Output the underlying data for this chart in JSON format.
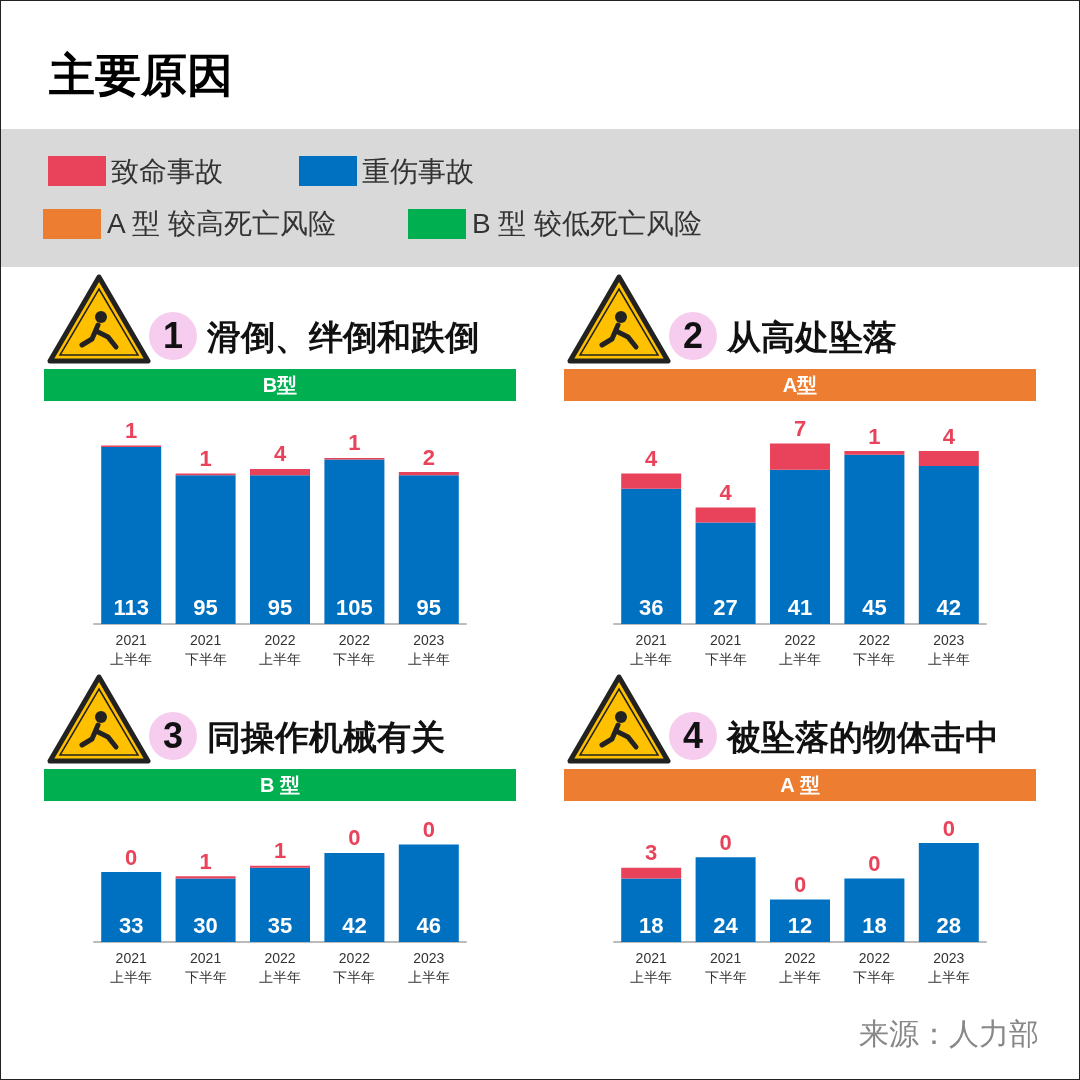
{
  "chart_data": [
    {
      "type": "other",
      "title": "主要原因",
      "categories": [
        "A 型 较高死亡风险",
        "B 型 较低死亡风险"
      ],
      "colors": [
        "#ed7d31",
        "#00b050"
      ]
    },
    {
      "type": "bar",
      "title": "滑倒、绊倒和跌倒",
      "subtitle": "B型",
      "annotations": [
        "1"
      ],
      "categories": [
        "2021\n上半年",
        "2021\n下半年",
        "2022\n上半年",
        "2022\n下半年",
        "2023\n上半年"
      ],
      "stacked": true,
      "data_labels": true,
      "legend": "top left",
      "tick_labels": "x",
      "series": [
        {
          "name": "重伤事故",
          "color": "#0070c0",
          "values": [
            113,
            95,
            95,
            105,
            95
          ]
        },
        {
          "name": "致命事故",
          "color": "#e8435a",
          "values": [
            1,
            1,
            4,
            1,
            2
          ]
        }
      ]
    },
    {
      "type": "bar",
      "title": "从高处坠落",
      "subtitle": "A型",
      "annotations": [
        "2"
      ],
      "categories": [
        "2021\n上半年",
        "2021\n下半年",
        "2022\n上半年",
        "2022\n下半年",
        "2023\n上半年"
      ],
      "stacked": true,
      "data_labels": true,
      "tick_labels": "x",
      "series": [
        {
          "color": "#0070c0",
          "values": [
            36,
            27,
            41,
            45,
            42
          ]
        },
        {
          "color": "#e8435a",
          "values": [
            4,
            4,
            7,
            1,
            4
          ]
        }
      ]
    },
    {
      "type": "bar",
      "title": "同操作机械有关",
      "subtitle": "B 型",
      "annotations": [
        "3"
      ],
      "categories": [
        "2021\n上半年",
        "2021\n下半年",
        "2022\n上半年",
        "2022\n下半年",
        "2023\n上半年"
      ],
      "stacked": true,
      "data_labels": true,
      "tick_labels": "x",
      "series": [
        {
          "color": "#0070c0",
          "values": [
            33,
            30,
            35,
            42,
            46
          ]
        },
        {
          "color": "#e8435a",
          "values": [
            0,
            1,
            1,
            0,
            0
          ]
        }
      ]
    },
    {
      "type": "bar",
      "title": "被坠落的物体击中",
      "subtitle": "A 型",
      "annotations": [
        "4",
        "来源：人力部"
      ],
      "categories": [
        "2021\n上半年",
        "2021\n下半年",
        "2022\n上半年",
        "2022\n下半年",
        "2023\n上半年"
      ],
      "stacked": true,
      "data_labels": true,
      "tick_labels": "x",
      "series": [
        {
          "color": "#0070c0",
          "values": [
            18,
            24,
            12,
            18,
            28
          ]
        },
        {
          "color": "#e8435a",
          "values": [
            3,
            0,
            0,
            0,
            0
          ]
        }
      ]
    }
  ]
}
